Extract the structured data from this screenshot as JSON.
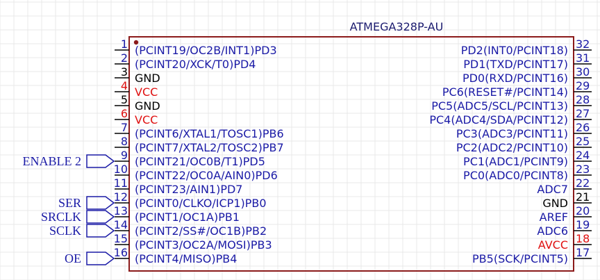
{
  "part_name": "ATMEGA328P-AU",
  "colors": {
    "body": "#8b1a1a",
    "signal": "#1a1aa6",
    "power": "#e01010",
    "ground": "#000000",
    "grid": "#e8e8e8",
    "title": "#1a1a6e"
  },
  "left_pins": [
    {
      "num": "1",
      "label": "(PCINT19/OC2B/INT1)PD3",
      "kind": "signal"
    },
    {
      "num": "2",
      "label": "(PCINT20/XCK/T0)PD4",
      "kind": "signal"
    },
    {
      "num": "3",
      "label": "GND",
      "kind": "ground"
    },
    {
      "num": "4",
      "label": "VCC",
      "kind": "power"
    },
    {
      "num": "5",
      "label": "GND",
      "kind": "ground"
    },
    {
      "num": "6",
      "label": "VCC",
      "kind": "power"
    },
    {
      "num": "7",
      "label": "(PCINT6/XTAL1/TOSC1)PB6",
      "kind": "signal"
    },
    {
      "num": "8",
      "label": "(PCINT7/XTAL2/TOSC2)PB7",
      "kind": "signal"
    },
    {
      "num": "9",
      "label": "(PCINT21/OC0B/T1)PD5",
      "kind": "signal"
    },
    {
      "num": "10",
      "label": "(PCINT22/OC0A/AIN0)PD6",
      "kind": "signal"
    },
    {
      "num": "11",
      "label": "(PCINT23/AIN1)PD7",
      "kind": "signal"
    },
    {
      "num": "12",
      "label": "(PCINT0/CLKO/ICP1)PB0",
      "kind": "signal"
    },
    {
      "num": "13",
      "label": "(PCINT1/OC1A)PB1",
      "kind": "signal"
    },
    {
      "num": "14",
      "label": "(PCINT2/SS#/OC1B)PB2",
      "kind": "signal"
    },
    {
      "num": "15",
      "label": "(PCINT3/OC2A/MOSI)PB3",
      "kind": "signal"
    },
    {
      "num": "16",
      "label": "(PCINT4/MISO)PB4",
      "kind": "signal"
    }
  ],
  "right_pins": [
    {
      "num": "32",
      "label": "PD2(INT0/PCINT18)",
      "kind": "signal"
    },
    {
      "num": "31",
      "label": "PD1(TXD/PCINT17)",
      "kind": "signal"
    },
    {
      "num": "30",
      "label": "PD0(RXD/PCINT16)",
      "kind": "signal"
    },
    {
      "num": "29",
      "label": "PC6(RESET#/PCINT14)",
      "kind": "signal"
    },
    {
      "num": "28",
      "label": "PC5(ADC5/SCL/PCINT13)",
      "kind": "signal"
    },
    {
      "num": "27",
      "label": "PC4(ADC4/SDA/PCINT12)",
      "kind": "signal"
    },
    {
      "num": "26",
      "label": "PC3(ADC3/PCINT11)",
      "kind": "signal"
    },
    {
      "num": "25",
      "label": "PC2(ADC2/PCINT10)",
      "kind": "signal"
    },
    {
      "num": "24",
      "label": "PC1(ADC1/PCINT9)",
      "kind": "signal"
    },
    {
      "num": "23",
      "label": "PC0(ADC0/PCINT8)",
      "kind": "signal"
    },
    {
      "num": "22",
      "label": "ADC7",
      "kind": "signal"
    },
    {
      "num": "21",
      "label": "GND",
      "kind": "ground"
    },
    {
      "num": "20",
      "label": "AREF",
      "kind": "signal"
    },
    {
      "num": "19",
      "label": "ADC6",
      "kind": "signal"
    },
    {
      "num": "18",
      "label": "AVCC",
      "kind": "power"
    },
    {
      "num": "17",
      "label": "PB5(SCK/PCINT5)",
      "kind": "signal"
    }
  ],
  "net_labels": [
    {
      "pin": "9",
      "text": "ENABLE 2"
    },
    {
      "pin": "12",
      "text": "SER"
    },
    {
      "pin": "13",
      "text": "SRCLK"
    },
    {
      "pin": "14",
      "text": "SCLK"
    },
    {
      "pin": "16",
      "text": "OE"
    }
  ]
}
